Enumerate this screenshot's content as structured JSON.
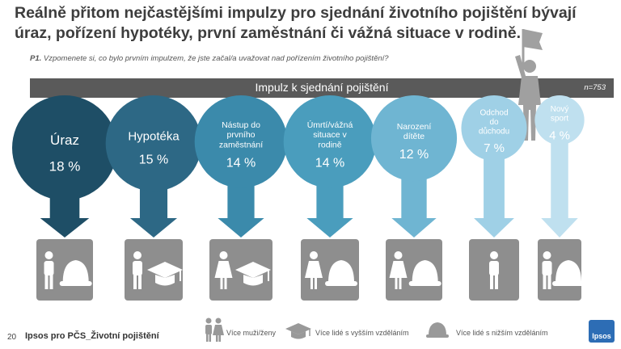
{
  "title": "Reálně přitom nejčastějšími impulzy pro sjednání životního pojištění bývají úraz, pořízení hypotéky, první zaměstnání či vážná situace v rodině.",
  "question_code": "P1.",
  "question_text": "Vzpomenete si, co bylo prvním impulzem, že jste začal/a uvažovat nad pořízením životního pojištění?",
  "band_title": "Impulz k sjednání pojištění",
  "sample": "n=753",
  "chart_data": {
    "type": "bubble",
    "categories": [
      "Úraz",
      "Hypotéka",
      "Nástup do prvního zaměstnání",
      "Úmrtí/vážná situace v rodině",
      "Narození dítěte",
      "Odchod do důchodu",
      "Nový sport"
    ],
    "values": [
      18,
      15,
      14,
      14,
      12,
      7,
      4
    ],
    "labels": [
      "18 %",
      "15 %",
      "14 %",
      "14 %",
      "12 %",
      "7 %",
      "4 %"
    ],
    "colors": [
      "#1e4e66",
      "#2d6885",
      "#3b8aab",
      "#4a9dbd",
      "#6fb5d2",
      "#9fd0e6",
      "#bfe0ef"
    ],
    "icons": [
      [
        "person-icon",
        "helmet-icon"
      ],
      [
        "person-icon",
        "graduation-cap-icon"
      ],
      [
        "woman-icon",
        "graduation-cap-icon"
      ],
      [
        "woman-icon",
        "helmet-icon"
      ],
      [
        "woman-icon",
        "helmet-icon"
      ],
      [
        "person-icon"
      ],
      [
        "person-icon",
        "helmet-icon"
      ]
    ]
  },
  "legend": [
    {
      "icon": "couple-icon",
      "label": "Více muži/ženy"
    },
    {
      "icon": "graduation-cap-icon",
      "label": "Více lidé s vyšším vzděláním"
    },
    {
      "icon": "helmet-icon",
      "label": "Více lidé s nižším vzděláním"
    }
  ],
  "footer": {
    "page": "20",
    "text": "Ipsos pro PČS_Životní pojištění",
    "logo": "Ipsos"
  }
}
